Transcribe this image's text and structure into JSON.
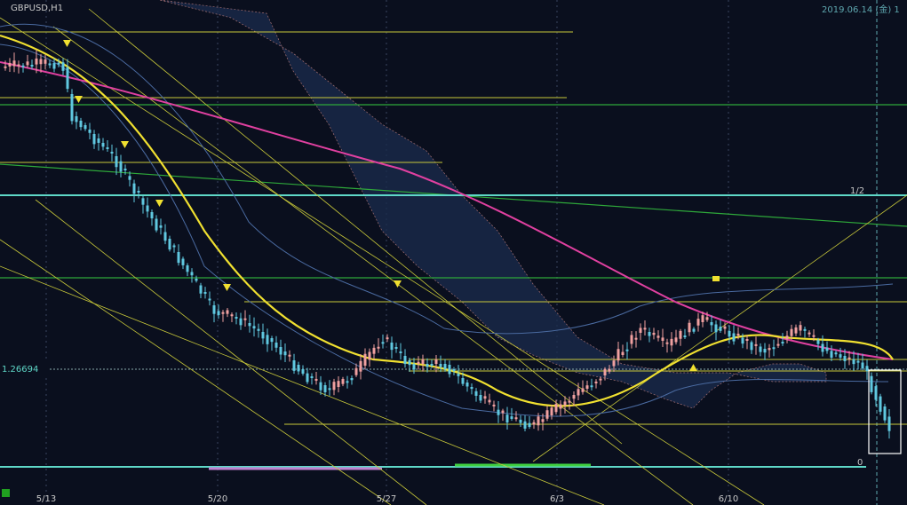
{
  "header": {
    "symbol": "GBPUSD,H1",
    "datetime": "2019.06.14 (金) 1"
  },
  "price_label": "1.26694",
  "fib_labels": [
    "1/2",
    "0"
  ],
  "x_labels": [
    "5/13",
    "5/20",
    "5/27",
    "6/3",
    "6/10"
  ]
}
